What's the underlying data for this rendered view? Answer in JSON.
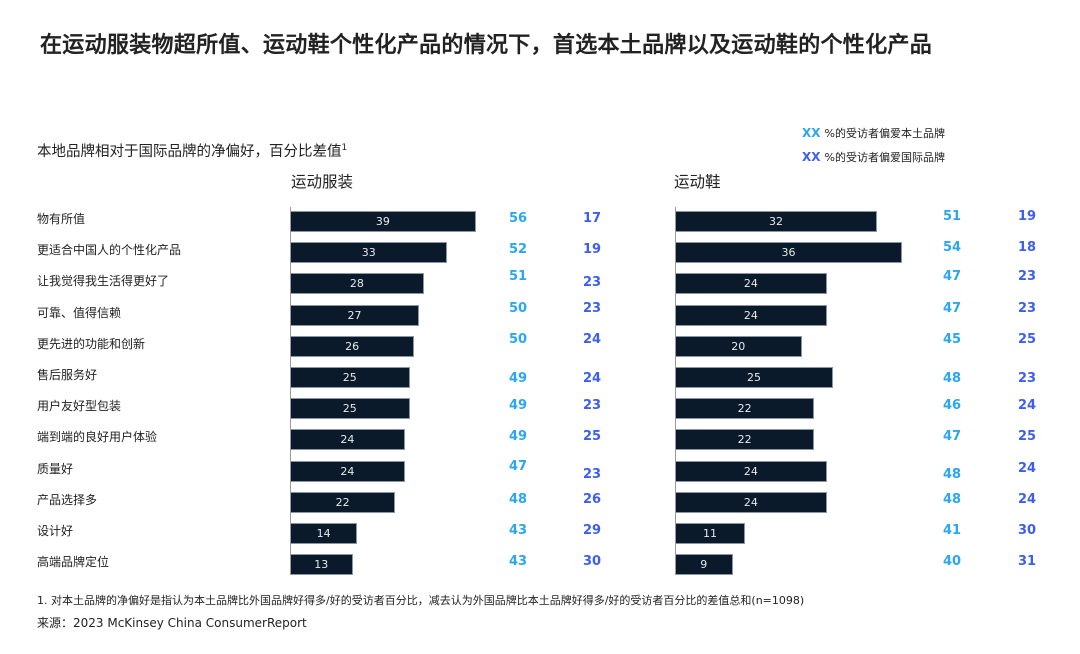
{
  "title": "在运动服装物超所值、运动鞋个性化产品的情况下，首选本土品牌以及运动鞋的个性化产品",
  "subtitle": "本地品牌相对于国际品牌的净偏好，百分比差值",
  "subtitle_sup": "1",
  "legend": [
    {
      "marker": "XX",
      "text": "%的受访者偏爱本土品牌",
      "color": "#2aa7f0"
    },
    {
      "marker": "XX",
      "text": "%的受访者偏爱国际品牌",
      "color": "#3d5ef0"
    }
  ],
  "categories": [
    "物有所值",
    "更适合中国人的个性化产品",
    "让我觉得我生活得更好了",
    "可靠、值得信赖",
    "更先进的功能和创新",
    "售后服务好",
    "用户友好型包装",
    "端到端的良好用户体验",
    "质量好",
    "产品选择多",
    "设计好",
    "高端品牌定位"
  ],
  "panels": [
    {
      "title": "运动服装",
      "net": [
        "39",
        "33",
        "28",
        "27",
        "26",
        "25",
        "25",
        "24",
        "24",
        "22",
        "14",
        "13"
      ],
      "local": [
        "56",
        "52",
        "51",
        "50",
        "50",
        "49",
        "49",
        "49",
        "47",
        "48",
        "43",
        "43"
      ],
      "intl": [
        "17",
        "19",
        "23",
        "23",
        "24",
        "24",
        "23",
        "25",
        "23",
        "26",
        "29",
        "30"
      ]
    },
    {
      "title": "运动鞋",
      "net": [
        "32",
        "36",
        "24",
        "24",
        "20",
        "25",
        "22",
        "22",
        "24",
        "24",
        "11",
        "9"
      ],
      "local": [
        "51",
        "54",
        "47",
        "47",
        "45",
        "48",
        "46",
        "47",
        "48",
        "48",
        "41",
        "40"
      ],
      "intl": [
        "19",
        "18",
        "23",
        "23",
        "25",
        "23",
        "24",
        "25",
        "24",
        "24",
        "30",
        "31"
      ]
    }
  ],
  "footnote": "1. 对本土品牌的净偏好是指认为本土品牌比外国品牌好得多/好的受访者百分比，减去认为外国品牌比本土品牌好得多/好的受访者百分比的差值总和(n=1098)",
  "source": "来源：2023 McKinsey China ConsumerReport",
  "chart_data": [
    {
      "type": "bar",
      "title": "运动服装",
      "subtitle": "本地品牌相对于国际品牌的净偏好，百分比差值",
      "categories": [
        "物有所值",
        "更适合中国人的个性化产品",
        "让我觉得我生活得更好了",
        "可靠、值得信赖",
        "更先进的功能和创新",
        "售后服务好",
        "用户友好型包装",
        "端到端的良好用户体验",
        "质量好",
        "产品选择多",
        "设计好",
        "高端品牌定位"
      ],
      "series": [
        {
          "name": "净偏好",
          "values": [
            39,
            33,
            28,
            27,
            26,
            25,
            25,
            24,
            24,
            22,
            14,
            13
          ]
        },
        {
          "name": "%的受访者偏爱本土品牌",
          "values": [
            56,
            52,
            51,
            50,
            50,
            49,
            49,
            49,
            47,
            48,
            43,
            43
          ]
        },
        {
          "name": "%的受访者偏爱国际品牌",
          "values": [
            17,
            19,
            23,
            23,
            24,
            24,
            23,
            25,
            23,
            26,
            29,
            30
          ]
        }
      ],
      "orientation": "horizontal"
    },
    {
      "type": "bar",
      "title": "运动鞋",
      "subtitle": "本地品牌相对于国际品牌的净偏好，百分比差值",
      "categories": [
        "物有所值",
        "更适合中国人的个性化产品",
        "让我觉得我生活得更好了",
        "可靠、值得信赖",
        "更先进的功能和创新",
        "售后服务好",
        "用户友好型包装",
        "端到端的良好用户体验",
        "质量好",
        "产品选择多",
        "设计好",
        "高端品牌定位"
      ],
      "series": [
        {
          "name": "净偏好",
          "values": [
            32,
            36,
            24,
            24,
            20,
            25,
            22,
            22,
            24,
            24,
            11,
            9
          ]
        },
        {
          "name": "%的受访者偏爱本土品牌",
          "values": [
            51,
            54,
            47,
            47,
            45,
            48,
            46,
            47,
            48,
            48,
            41,
            40
          ]
        },
        {
          "name": "%的受访者偏爱国际品牌",
          "values": [
            19,
            18,
            23,
            23,
            25,
            23,
            24,
            25,
            24,
            24,
            30,
            31
          ]
        }
      ],
      "orientation": "horizontal"
    }
  ]
}
